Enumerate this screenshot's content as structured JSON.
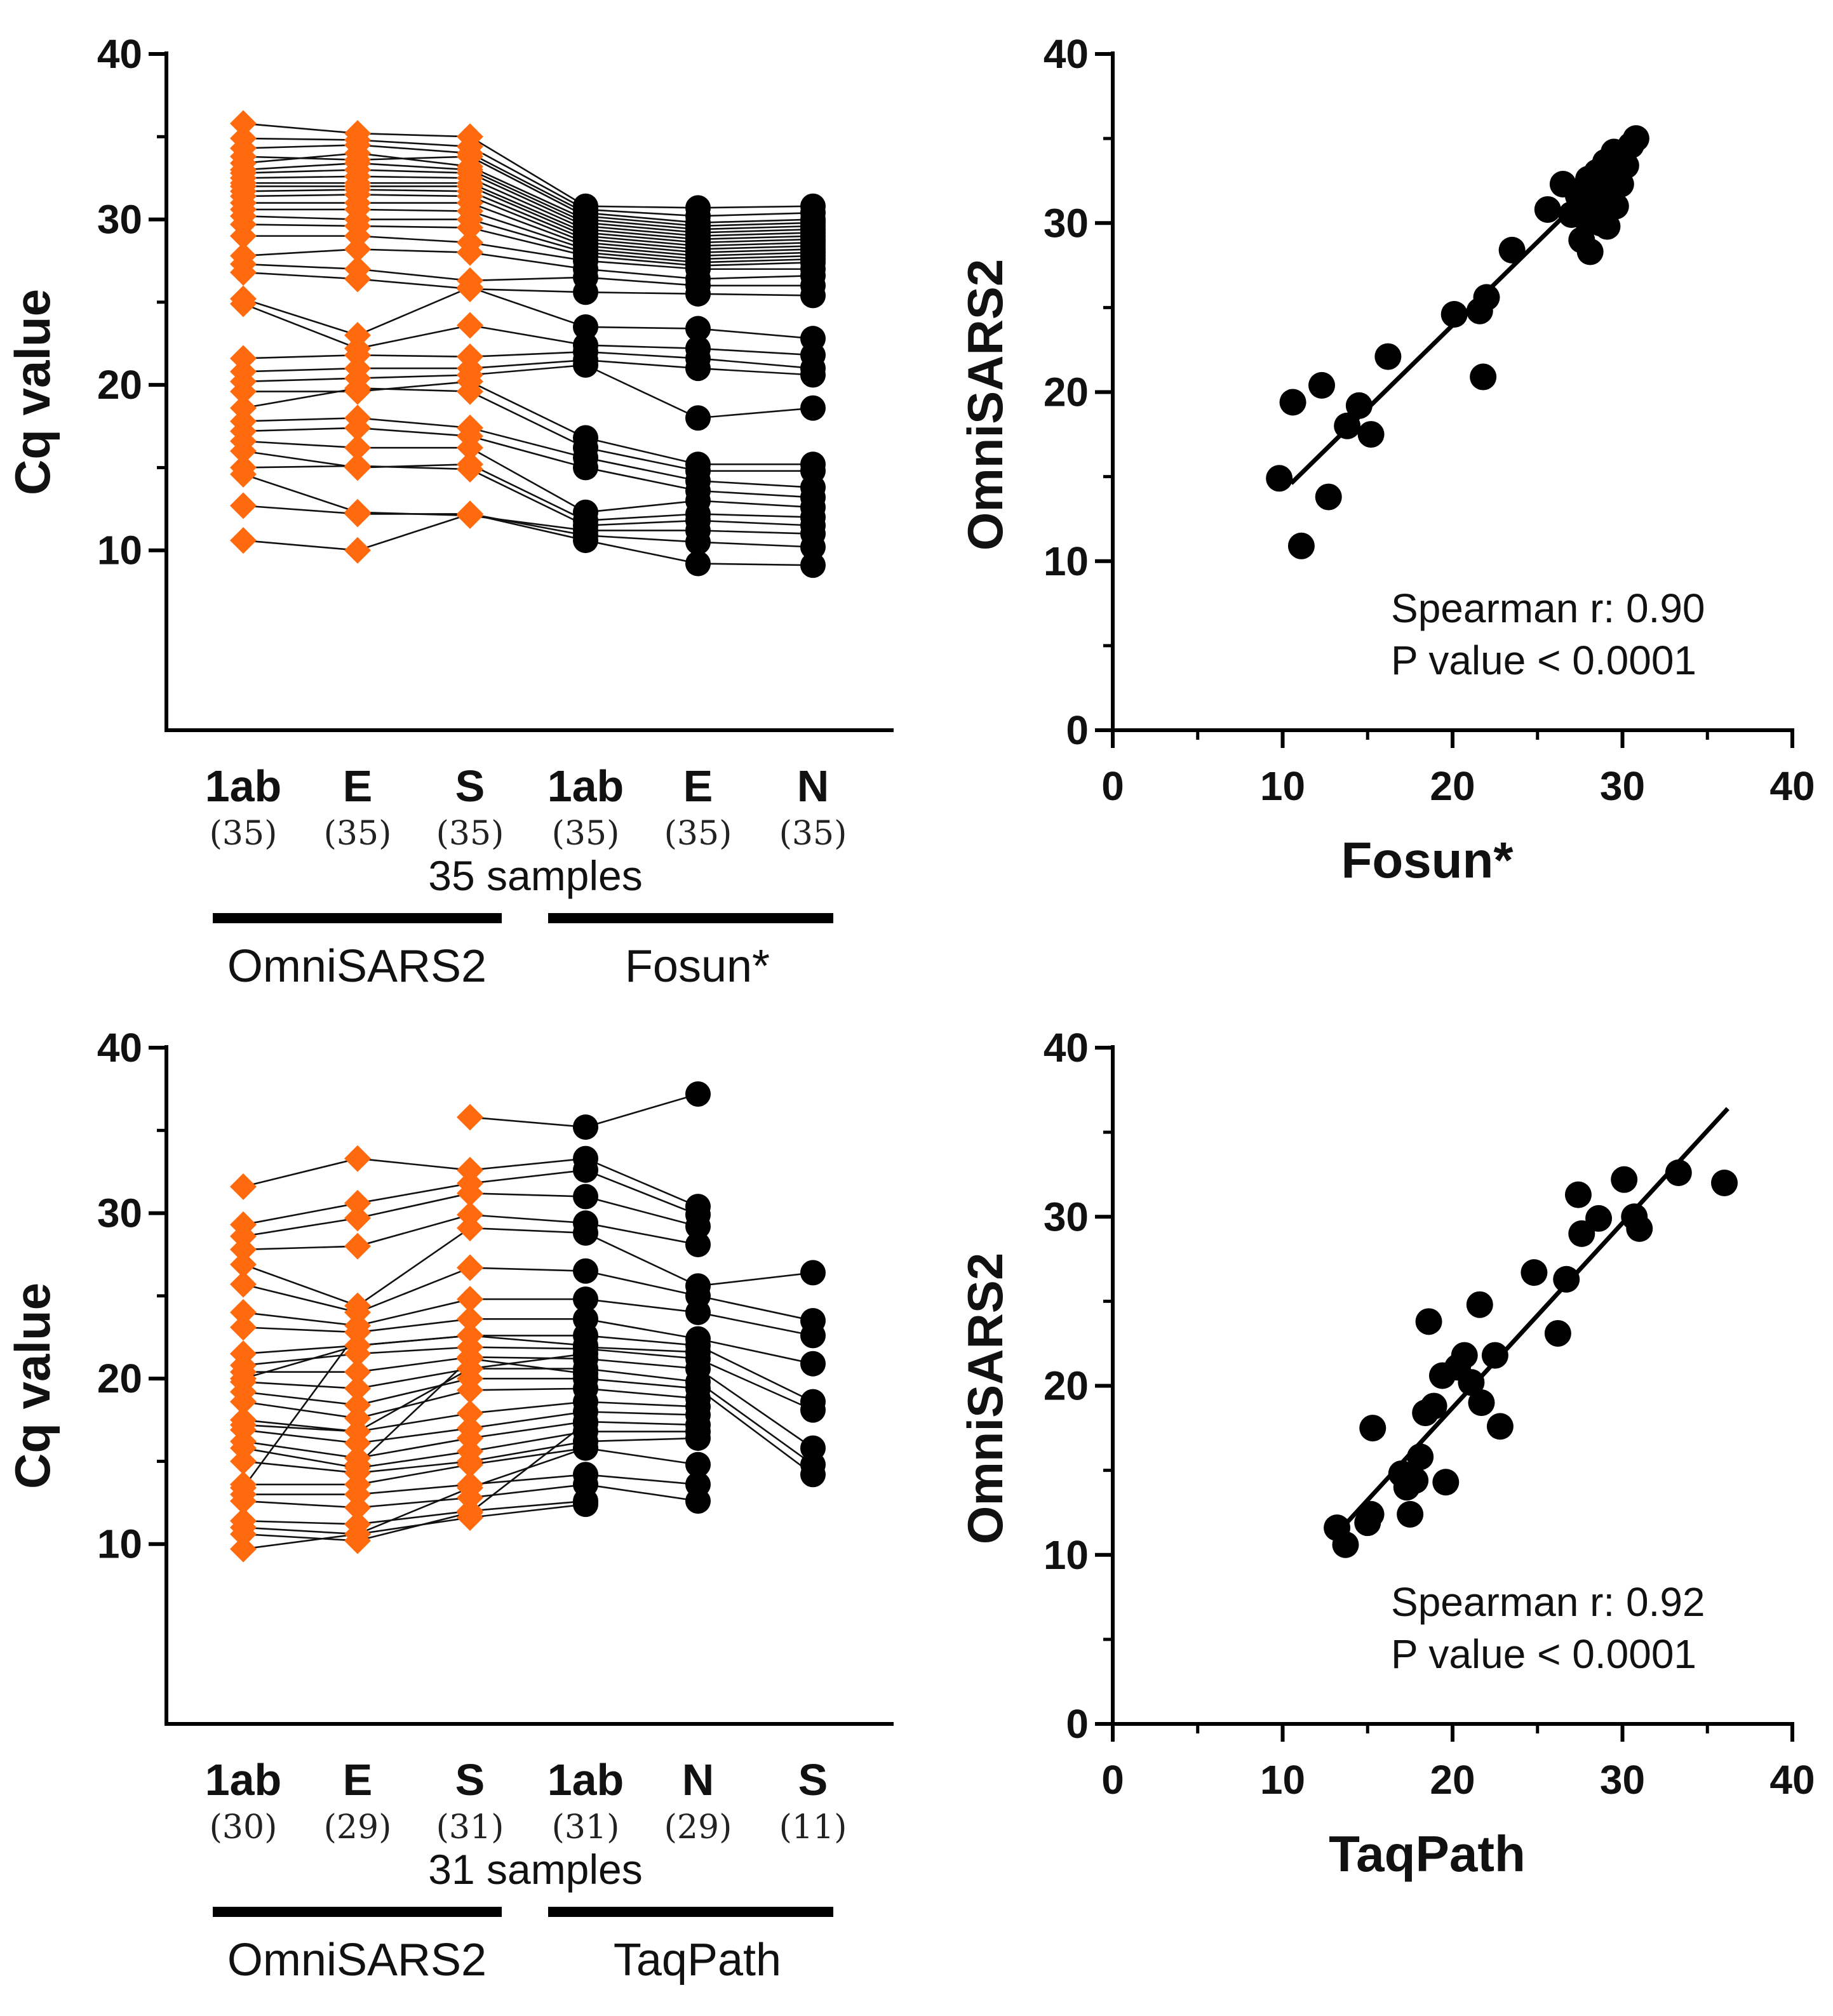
{
  "colors": {
    "omni": "#FF6A0E",
    "other": "#000000"
  },
  "chart_data": [
    {
      "id": "paired-top",
      "type": "line",
      "ylabel": "Cq value",
      "ylim": [
        5,
        40
      ],
      "y_ticks": [
        "40",
        "30",
        "20",
        "10"
      ],
      "categories": [
        {
          "label": "1ab",
          "count": "(35)"
        },
        {
          "label": "E",
          "count": "(35)"
        },
        {
          "label": "S",
          "count": "(35)"
        },
        {
          "label": "1ab",
          "count": "(35)"
        },
        {
          "label": "E",
          "count": "(35)"
        },
        {
          "label": "N",
          "count": "(35)"
        }
      ],
      "samples_label": "35 samples",
      "groups": [
        {
          "name": "OmniSARS2",
          "marker": "diamond",
          "color": "#FF6A0E"
        },
        {
          "name": "Fosun*",
          "marker": "circle",
          "color": "#000000"
        }
      ],
      "series": [
        [
          35.8,
          35.2,
          35.0,
          30.8,
          30.7,
          30.8
        ],
        [
          34.9,
          34.8,
          34.4,
          30.6,
          30.2,
          30.4
        ],
        [
          34.3,
          34.5,
          34.0,
          30.4,
          29.8,
          30.0
        ],
        [
          33.8,
          33.6,
          33.8,
          30.2,
          29.6,
          29.8
        ],
        [
          33.4,
          34.0,
          33.2,
          30.0,
          29.4,
          29.6
        ],
        [
          33.0,
          33.4,
          33.0,
          29.8,
          29.2,
          29.4
        ],
        [
          32.8,
          33.0,
          32.8,
          29.6,
          29.0,
          29.2
        ],
        [
          32.5,
          32.6,
          32.5,
          29.4,
          28.8,
          29.0
        ],
        [
          32.2,
          32.2,
          32.2,
          29.2,
          28.6,
          28.8
        ],
        [
          32.0,
          32.0,
          32.0,
          29.0,
          28.4,
          28.6
        ],
        [
          31.7,
          31.8,
          31.7,
          28.8,
          28.2,
          28.4
        ],
        [
          31.4,
          31.5,
          31.4,
          28.6,
          28.0,
          28.2
        ],
        [
          31.0,
          31.0,
          31.0,
          28.4,
          27.8,
          28.0
        ],
        [
          30.6,
          30.6,
          30.5,
          28.2,
          27.6,
          27.8
        ],
        [
          30.2,
          30.0,
          30.0,
          28.0,
          27.4,
          27.6
        ],
        [
          29.7,
          29.6,
          29.5,
          27.8,
          27.2,
          27.4
        ],
        [
          29.0,
          29.0,
          28.6,
          27.5,
          27.0,
          27.0
        ],
        [
          27.8,
          28.2,
          28.0,
          27.0,
          26.4,
          26.6
        ],
        [
          27.3,
          27.0,
          26.3,
          26.5,
          26.0,
          26.0
        ],
        [
          26.8,
          26.4,
          25.8,
          25.6,
          25.5,
          25.4
        ],
        [
          25.2,
          23.0,
          25.9,
          23.5,
          23.4,
          22.8
        ],
        [
          24.9,
          22.2,
          23.6,
          22.4,
          22.2,
          21.8
        ],
        [
          21.6,
          21.8,
          21.7,
          22.0,
          21.6,
          21.0
        ],
        [
          20.8,
          21.0,
          21.0,
          21.5,
          21.0,
          20.6
        ],
        [
          20.2,
          20.4,
          20.6,
          21.2,
          18.0,
          18.6
        ],
        [
          19.6,
          19.6,
          20.2,
          16.8,
          15.2,
          15.2
        ],
        [
          18.6,
          19.8,
          19.6,
          16.2,
          14.8,
          14.8
        ],
        [
          17.8,
          18.0,
          17.4,
          15.6,
          14.2,
          13.8
        ],
        [
          17.2,
          17.4,
          16.9,
          15.0,
          13.6,
          13.2
        ],
        [
          16.6,
          16.2,
          16.2,
          12.3,
          13.0,
          12.6
        ],
        [
          16.0,
          15.0,
          15.2,
          11.8,
          12.2,
          12.0
        ],
        [
          15.0,
          15.1,
          14.9,
          11.5,
          11.8,
          11.5
        ],
        [
          14.6,
          12.3,
          12.1,
          11.2,
          11.2,
          11.0
        ],
        [
          12.7,
          12.2,
          12.2,
          10.9,
          10.5,
          10.2
        ],
        [
          10.6,
          10.0,
          12.2,
          10.6,
          9.2,
          9.1
        ]
      ]
    },
    {
      "id": "scatter-top",
      "type": "scatter",
      "xlabel": "Fosun*",
      "ylabel": "OmniSARS2",
      "xlim": [
        0,
        40
      ],
      "ylim": [
        0,
        40
      ],
      "x_ticks": [
        "0",
        "10",
        "20",
        "30",
        "40"
      ],
      "y_ticks": [
        "0",
        "10",
        "20",
        "30",
        "40"
      ],
      "annotation": [
        "Spearman r: 0.90",
        "P value < 0.0001"
      ],
      "trend_line": {
        "x": [
          10.5,
          30.0
        ],
        "y": [
          14.6,
          33.8
        ]
      },
      "points": [
        [
          9.8,
          14.9
        ],
        [
          10.6,
          19.4
        ],
        [
          11.1,
          10.9
        ],
        [
          12.3,
          20.4
        ],
        [
          12.7,
          13.8
        ],
        [
          13.8,
          18.0
        ],
        [
          14.5,
          19.2
        ],
        [
          15.2,
          17.5
        ],
        [
          16.2,
          22.1
        ],
        [
          20.1,
          24.6
        ],
        [
          21.6,
          24.8
        ],
        [
          21.8,
          20.9
        ],
        [
          22.0,
          25.6
        ],
        [
          23.5,
          28.4
        ],
        [
          25.6,
          30.8
        ],
        [
          26.5,
          32.3
        ],
        [
          27.0,
          30.5
        ],
        [
          27.4,
          31.6
        ],
        [
          27.6,
          29.0
        ],
        [
          27.9,
          30.2
        ],
        [
          28.0,
          32.6
        ],
        [
          28.1,
          28.3
        ],
        [
          28.3,
          31.0
        ],
        [
          28.5,
          33.0
        ],
        [
          28.7,
          30.0
        ],
        [
          28.9,
          31.8
        ],
        [
          29.0,
          33.6
        ],
        [
          29.1,
          29.8
        ],
        [
          29.3,
          32.8
        ],
        [
          29.5,
          34.2
        ],
        [
          29.6,
          31.0
        ],
        [
          29.9,
          32.3
        ],
        [
          30.2,
          33.4
        ],
        [
          30.5,
          34.6
        ],
        [
          30.8,
          35.0
        ]
      ]
    },
    {
      "id": "paired-bottom",
      "type": "line",
      "ylabel": "Cq value",
      "ylim": [
        5,
        40
      ],
      "y_ticks": [
        "40",
        "30",
        "20",
        "10"
      ],
      "categories": [
        {
          "label": "1ab",
          "count": "(30)"
        },
        {
          "label": "E",
          "count": "(29)"
        },
        {
          "label": "S",
          "count": "(31)"
        },
        {
          "label": "1ab",
          "count": "(31)"
        },
        {
          "label": "N",
          "count": "(29)"
        },
        {
          "label": "S",
          "count": "(11)"
        }
      ],
      "samples_label": "31 samples",
      "groups": [
        {
          "name": "OmniSARS2",
          "marker": "diamond",
          "color": "#FF6A0E"
        },
        {
          "name": "TaqPath",
          "marker": "circle",
          "color": "#000000"
        }
      ],
      "series": [
        [
          null,
          null,
          35.8,
          35.2,
          37.2,
          null
        ],
        [
          31.6,
          33.3,
          32.6,
          33.3,
          30.4,
          null
        ],
        [
          29.3,
          30.6,
          31.8,
          32.6,
          29.9,
          null
        ],
        [
          28.6,
          29.7,
          31.2,
          31.0,
          29.2,
          null
        ],
        [
          27.8,
          28.0,
          29.9,
          29.4,
          28.1,
          null
        ],
        [
          26.9,
          24.4,
          29.1,
          28.8,
          25.6,
          26.4
        ],
        [
          25.7,
          24.0,
          26.7,
          26.5,
          25.0,
          23.5
        ],
        [
          24.0,
          23.2,
          24.8,
          24.8,
          24.0,
          22.6
        ],
        [
          23.1,
          22.8,
          23.6,
          23.6,
          22.4,
          20.9
        ],
        [
          21.5,
          22.0,
          22.6,
          22.6,
          22.0,
          18.6
        ],
        [
          20.8,
          21.5,
          21.9,
          21.8,
          21.2,
          18.1
        ],
        [
          20.4,
          20.4,
          21.3,
          21.2,
          20.6,
          15.8
        ],
        [
          19.8,
          19.4,
          20.6,
          20.6,
          19.8,
          14.8
        ],
        [
          19.2,
          18.4,
          20.0,
          20.0,
          19.4,
          14.2
        ],
        [
          18.6,
          17.6,
          19.3,
          19.4,
          18.8,
          null
        ],
        [
          17.5,
          16.8,
          17.9,
          18.6,
          18.3,
          null
        ],
        [
          16.9,
          16.1,
          17.0,
          18.0,
          17.8,
          null
        ],
        [
          16.2,
          15.2,
          16.4,
          17.4,
          17.2,
          null
        ],
        [
          15.8,
          14.6,
          15.6,
          16.8,
          16.8,
          null
        ],
        [
          15.0,
          14.3,
          15.0,
          16.2,
          16.4,
          null
        ],
        [
          13.6,
          13.6,
          14.8,
          15.8,
          14.8,
          null
        ],
        [
          13.0,
          13.0,
          13.6,
          14.2,
          13.6,
          null
        ],
        [
          12.6,
          12.2,
          12.8,
          13.6,
          12.6,
          null
        ],
        [
          11.4,
          11.2,
          12.0,
          12.6,
          null,
          null
        ],
        [
          11.0,
          10.6,
          11.6,
          12.4,
          null,
          null
        ],
        [
          10.6,
          10.2,
          11.9,
          17.3,
          null,
          null
        ],
        [
          9.7,
          10.6,
          13.4,
          15.8,
          null,
          null
        ],
        [
          17.2,
          16.8,
          20.6,
          21.5,
          null,
          null
        ],
        [
          20.0,
          22.0,
          22.6,
          22.0,
          null,
          null
        ],
        [
          13.4,
          22.8,
          null,
          21.9,
          21.6,
          null
        ],
        [
          null,
          14.8,
          21.2,
          20.3,
          null,
          null
        ]
      ]
    },
    {
      "id": "scatter-bottom",
      "type": "scatter",
      "xlabel": "TaqPath",
      "ylabel": "OmniSARS2",
      "xlim": [
        0,
        40
      ],
      "ylim": [
        0,
        40
      ],
      "x_ticks": [
        "0",
        "10",
        "20",
        "30",
        "40"
      ],
      "y_ticks": [
        "0",
        "10",
        "20",
        "30",
        "40"
      ],
      "annotation": [
        "Spearman r: 0.92",
        "P value < 0.0001"
      ],
      "trend_line": {
        "x": [
          13.5,
          36.2
        ],
        "y": [
          11.6,
          36.4
        ]
      },
      "points": [
        [
          13.2,
          11.6
        ],
        [
          13.7,
          10.6
        ],
        [
          15.0,
          11.9
        ],
        [
          15.2,
          12.4
        ],
        [
          15.3,
          17.5
        ],
        [
          17.0,
          14.8
        ],
        [
          17.3,
          14.0
        ],
        [
          17.5,
          12.4
        ],
        [
          17.8,
          14.4
        ],
        [
          18.1,
          15.8
        ],
        [
          18.4,
          18.4
        ],
        [
          18.6,
          23.8
        ],
        [
          18.9,
          18.8
        ],
        [
          19.4,
          20.6
        ],
        [
          19.6,
          14.3
        ],
        [
          20.3,
          21.1
        ],
        [
          20.7,
          21.8
        ],
        [
          21.1,
          20.2
        ],
        [
          21.6,
          24.8
        ],
        [
          21.7,
          19.0
        ],
        [
          22.5,
          21.8
        ],
        [
          22.8,
          17.6
        ],
        [
          24.8,
          26.7
        ],
        [
          26.2,
          23.1
        ],
        [
          26.7,
          26.3
        ],
        [
          27.4,
          31.3
        ],
        [
          27.6,
          29.0
        ],
        [
          28.6,
          29.9
        ],
        [
          30.1,
          32.2
        ],
        [
          30.7,
          30.0
        ],
        [
          31.0,
          29.3
        ],
        [
          33.3,
          32.6
        ],
        [
          36.0,
          32.0
        ]
      ]
    }
  ]
}
